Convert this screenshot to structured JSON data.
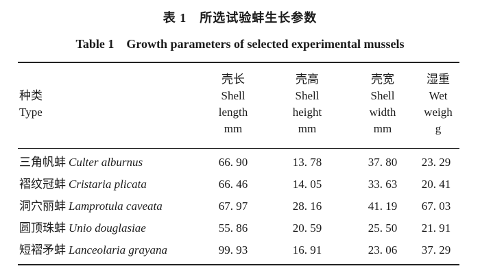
{
  "caption": {
    "cn": "表 1　所选试验蚌生长参数",
    "en": "Table 1　Growth parameters of selected experimental mussels"
  },
  "columns": {
    "type": {
      "cn": "种类",
      "en": "Type"
    },
    "shell_length": {
      "cn": "壳长",
      "en1": "Shell",
      "en2": "length",
      "unit": "mm"
    },
    "shell_height": {
      "cn": "壳高",
      "en1": "Shell",
      "en2": "height",
      "unit": "mm"
    },
    "shell_width": {
      "cn": "壳宽",
      "en1": "Shell",
      "en2": "width",
      "unit": "mm"
    },
    "wet_weight": {
      "cn": "湿重",
      "en1": "Wet",
      "en2": "weigh",
      "unit": "g"
    }
  },
  "rows": [
    {
      "cn": "三角帆蚌",
      "latin": "Culter alburnus",
      "length": "66. 90",
      "height": "13. 78",
      "width": "37. 80",
      "weight": "23. 29"
    },
    {
      "cn": "褶纹冠蚌",
      "latin": "Cristaria plicata",
      "length": "66. 46",
      "height": "14. 05",
      "width": "33. 63",
      "weight": "20. 41"
    },
    {
      "cn": "洞穴丽蚌",
      "latin": "Lamprotula caveata",
      "length": "67. 97",
      "height": "28. 16",
      "width": "41. 19",
      "weight": "67. 03"
    },
    {
      "cn": "圆顶珠蚌",
      "latin": "Unio douglasiae",
      "length": "55. 86",
      "height": "20. 59",
      "width": "25. 50",
      "weight": "21. 91"
    },
    {
      "cn": "短褶矛蚌",
      "latin": "Lanceolaria grayana",
      "length": "99. 93",
      "height": "16. 91",
      "width": "23. 06",
      "weight": "37. 29"
    }
  ]
}
